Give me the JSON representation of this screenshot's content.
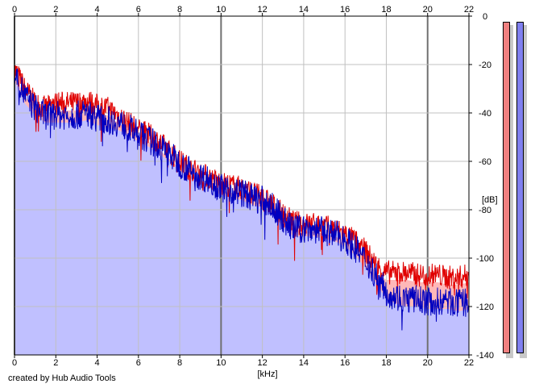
{
  "footer": {
    "credit": "created by Hub Audio Tools"
  },
  "colors": {
    "background": "#ffffff",
    "fill_left": "#ffb8b8",
    "fill_right": "#c0c0ff",
    "line_left": "#e00000",
    "line_right": "#0000c0",
    "grid_minor": "#c0c0c0",
    "grid_major": "#707070",
    "meter_left": "#f08080",
    "meter_right": "#8080f0"
  },
  "meters": [
    {
      "channel": "left",
      "level": 1.0
    },
    {
      "channel": "right",
      "level": 1.0
    }
  ],
  "chart_data": {
    "type": "area",
    "title": "",
    "xlabel": "[kHz]",
    "ylabel": "[dB]",
    "xlim": [
      0,
      22
    ],
    "ylim": [
      -140,
      0
    ],
    "grid": true,
    "x_ticks": [
      0,
      2,
      4,
      6,
      8,
      10,
      12,
      14,
      16,
      18,
      20,
      22
    ],
    "y_ticks": [
      0,
      -20,
      -40,
      -60,
      -80,
      -100,
      -120,
      -140
    ],
    "y_tick_labels": [
      "0",
      "-20",
      "-40",
      "-60",
      "-80",
      "-100",
      "-120",
      "-140"
    ],
    "series": [
      {
        "channel": "left",
        "x": [
          0,
          0.2,
          0.5,
          1,
          1.5,
          2,
          2.5,
          3,
          3.5,
          4,
          4.5,
          5,
          5.5,
          6,
          6.5,
          7,
          7.5,
          8,
          8.5,
          9,
          9.5,
          10,
          10.5,
          11,
          11.5,
          12,
          12.5,
          13,
          13.5,
          14,
          14.5,
          15,
          15.5,
          16,
          16.5,
          17,
          17.5,
          18,
          18.5,
          19,
          19.5,
          20,
          20.5,
          21,
          21.5,
          22
        ],
        "values": [
          -22,
          -25,
          -30,
          -36,
          -38,
          -36,
          -36,
          -36,
          -35,
          -37,
          -38,
          -41,
          -44,
          -47,
          -49,
          -52,
          -56,
          -60,
          -63,
          -65,
          -67,
          -69,
          -70,
          -71,
          -73,
          -75,
          -78,
          -82,
          -85,
          -86,
          -86,
          -87,
          -88,
          -90,
          -93,
          -97,
          -103,
          -106,
          -106,
          -106,
          -107,
          -107,
          -107,
          -108,
          -108,
          -107
        ]
      },
      {
        "channel": "right",
        "x": [
          0,
          0.2,
          0.5,
          1,
          1.5,
          2,
          2.5,
          3,
          3.5,
          4,
          4.5,
          5,
          5.5,
          6,
          6.5,
          7,
          7.5,
          8,
          8.5,
          9,
          9.5,
          10,
          10.5,
          11,
          11.5,
          12,
          12.5,
          13,
          13.5,
          14,
          14.5,
          15,
          15.5,
          16,
          16.5,
          17,
          17.5,
          18,
          18.5,
          19,
          19.5,
          20,
          20.5,
          21,
          21.5,
          22
        ],
        "values": [
          -24,
          -27,
          -33,
          -38,
          -41,
          -41,
          -41,
          -41,
          -40,
          -42,
          -43,
          -44,
          -46,
          -49,
          -51,
          -54,
          -57,
          -61,
          -64,
          -66,
          -68,
          -71,
          -72,
          -73,
          -75,
          -76,
          -79,
          -84,
          -88,
          -88,
          -88,
          -89,
          -90,
          -92,
          -96,
          -101,
          -107,
          -114,
          -116,
          -117,
          -117,
          -118,
          -118,
          -118,
          -119,
          -118
        ]
      }
    ]
  }
}
